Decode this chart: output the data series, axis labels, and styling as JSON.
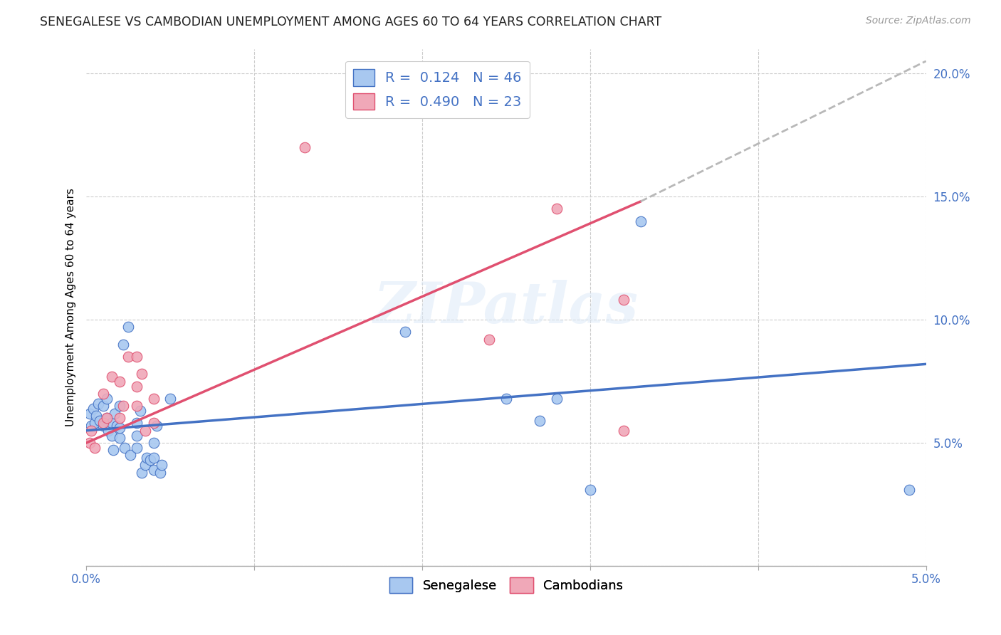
{
  "title": "SENEGALESE VS CAMBODIAN UNEMPLOYMENT AMONG AGES 60 TO 64 YEARS CORRELATION CHART",
  "source": "Source: ZipAtlas.com",
  "ylabel": "Unemployment Among Ages 60 to 64 years",
  "xlim": [
    0.0,
    0.05
  ],
  "ylim": [
    0.0,
    0.21
  ],
  "x_ticks": [
    0.0,
    0.01,
    0.02,
    0.03,
    0.04,
    0.05
  ],
  "x_tick_labels": [
    "0.0%",
    "",
    "",
    "",
    "",
    "5.0%"
  ],
  "y_ticks": [
    0.0,
    0.05,
    0.1,
    0.15,
    0.2
  ],
  "y_tick_labels": [
    "",
    "5.0%",
    "10.0%",
    "15.0%",
    "20.0%"
  ],
  "watermark": "ZIPatlas",
  "legend_R1": "R =  0.124",
  "legend_N1": "N = 46",
  "legend_R2": "R =  0.490",
  "legend_N2": "N = 23",
  "color_senegalese": "#a8c8f0",
  "color_cambodian": "#f0a8b8",
  "color_line_senegalese": "#4472c4",
  "color_line_cambodian": "#e05070",
  "color_line_dashed": "#b8b8b8",
  "color_axis_labels": "#4472c4",
  "color_legend_text": "#4472c4",
  "senegalese_x": [
    0.0002,
    0.0003,
    0.0004,
    0.0005,
    0.0006,
    0.0007,
    0.0008,
    0.001,
    0.001,
    0.0012,
    0.0012,
    0.0013,
    0.0015,
    0.0015,
    0.0016,
    0.0017,
    0.0018,
    0.002,
    0.002,
    0.002,
    0.0022,
    0.0023,
    0.0025,
    0.0026,
    0.003,
    0.003,
    0.003,
    0.0032,
    0.0033,
    0.0035,
    0.0036,
    0.0038,
    0.004,
    0.004,
    0.004,
    0.0042,
    0.0044,
    0.0045,
    0.005,
    0.019,
    0.025,
    0.027,
    0.028,
    0.03,
    0.033,
    0.049
  ],
  "senegalese_y": [
    0.062,
    0.057,
    0.064,
    0.058,
    0.061,
    0.066,
    0.059,
    0.057,
    0.065,
    0.06,
    0.068,
    0.055,
    0.058,
    0.053,
    0.047,
    0.062,
    0.057,
    0.052,
    0.056,
    0.065,
    0.09,
    0.048,
    0.097,
    0.045,
    0.048,
    0.053,
    0.058,
    0.063,
    0.038,
    0.041,
    0.044,
    0.043,
    0.039,
    0.044,
    0.05,
    0.057,
    0.038,
    0.041,
    0.068,
    0.095,
    0.068,
    0.059,
    0.068,
    0.031,
    0.14,
    0.031
  ],
  "cambodian_x": [
    0.0002,
    0.0003,
    0.0005,
    0.001,
    0.001,
    0.0012,
    0.0015,
    0.002,
    0.002,
    0.0022,
    0.0025,
    0.003,
    0.003,
    0.003,
    0.0033,
    0.0035,
    0.004,
    0.004,
    0.013,
    0.024,
    0.028,
    0.032,
    0.032
  ],
  "cambodian_y": [
    0.05,
    0.055,
    0.048,
    0.058,
    0.07,
    0.06,
    0.077,
    0.06,
    0.075,
    0.065,
    0.085,
    0.073,
    0.065,
    0.085,
    0.078,
    0.055,
    0.058,
    0.068,
    0.17,
    0.092,
    0.145,
    0.108,
    0.055
  ],
  "senegalese_line_x": [
    0.0,
    0.05
  ],
  "senegalese_line_y": [
    0.055,
    0.082
  ],
  "cambodian_line_x": [
    0.0,
    0.033
  ],
  "cambodian_line_y": [
    0.05,
    0.148
  ],
  "dashed_line_x": [
    0.033,
    0.05
  ],
  "dashed_line_y": [
    0.148,
    0.205
  ]
}
